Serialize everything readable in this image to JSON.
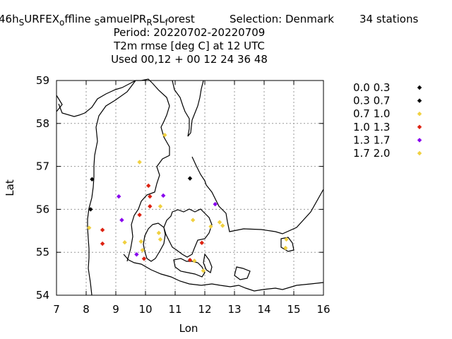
{
  "chart_data": {
    "type": "scatter",
    "title_lines": [
      {
        "prefix": "46h",
        "parts": [
          [
            "S",
            "sub"
          ],
          [
            "URFEX",
            "n"
          ],
          [
            "o",
            "sub"
          ],
          [
            "ffline ",
            "n"
          ],
          [
            "S",
            "sub"
          ],
          [
            "amuelPR",
            "n"
          ],
          [
            "R",
            "sub"
          ],
          [
            "SL",
            "n"
          ],
          [
            "f",
            "sub"
          ],
          [
            "orest",
            "n"
          ]
        ],
        "suffix": "Selection: Denmark",
        "count": "34 stations"
      },
      "Period: 20220702-20220709",
      "T2m rmse [deg C] at  12 UTC",
      "Used  00,12  + 00 12 24 36 48"
    ],
    "xlabel": "Lon",
    "ylabel": "Lat",
    "xlim": [
      7,
      16
    ],
    "ylim": [
      54,
      59
    ],
    "xticks": [
      "7",
      "8",
      "9",
      "10",
      "11",
      "12",
      "13",
      "14",
      "15",
      "16"
    ],
    "yticks": [
      "54",
      "55",
      "56",
      "57",
      "58",
      "59"
    ],
    "grid": true,
    "legend_position": "right",
    "series": [
      {
        "name": "0.0 0.3",
        "color": "#000000",
        "points": []
      },
      {
        "name": "0.3 0.7",
        "color": "#000000",
        "points": [
          [
            8.2,
            56.7
          ],
          [
            8.15,
            56.0
          ],
          [
            11.5,
            56.72
          ]
        ]
      },
      {
        "name": "0.7 1.0",
        "color": "#f0d040",
        "points": []
      },
      {
        "name": "1.0 1.3",
        "color": "#dd2211",
        "points": [
          [
            8.55,
            55.52
          ],
          [
            8.55,
            55.2
          ],
          [
            9.8,
            55.87
          ],
          [
            10.1,
            56.55
          ],
          [
            10.15,
            56.3
          ],
          [
            10.15,
            56.07
          ],
          [
            9.95,
            54.85
          ],
          [
            11.5,
            54.82
          ],
          [
            11.9,
            55.22
          ]
        ]
      },
      {
        "name": "1.3 1.7",
        "color": "#8800ee",
        "points": [
          [
            9.1,
            56.3
          ],
          [
            9.2,
            55.75
          ],
          [
            10.6,
            56.32
          ],
          [
            12.35,
            56.12
          ],
          [
            9.7,
            54.95
          ]
        ]
      },
      {
        "name": "1.7 2.0",
        "color": "#f0d040",
        "points": [
          [
            8.1,
            55.57
          ],
          [
            9.8,
            57.1
          ],
          [
            10.65,
            57.73
          ],
          [
            9.3,
            55.23
          ],
          [
            9.85,
            55.25
          ],
          [
            10.45,
            55.45
          ],
          [
            10.5,
            55.3
          ],
          [
            10.5,
            56.07
          ],
          [
            11.6,
            55.75
          ],
          [
            12.2,
            55.6
          ],
          [
            12.5,
            55.7
          ],
          [
            12.6,
            55.62
          ],
          [
            11.65,
            54.8
          ],
          [
            11.95,
            54.57
          ],
          [
            14.75,
            55.3
          ],
          [
            14.72,
            55.1
          ],
          [
            9.9,
            55.05
          ]
        ]
      }
    ]
  }
}
